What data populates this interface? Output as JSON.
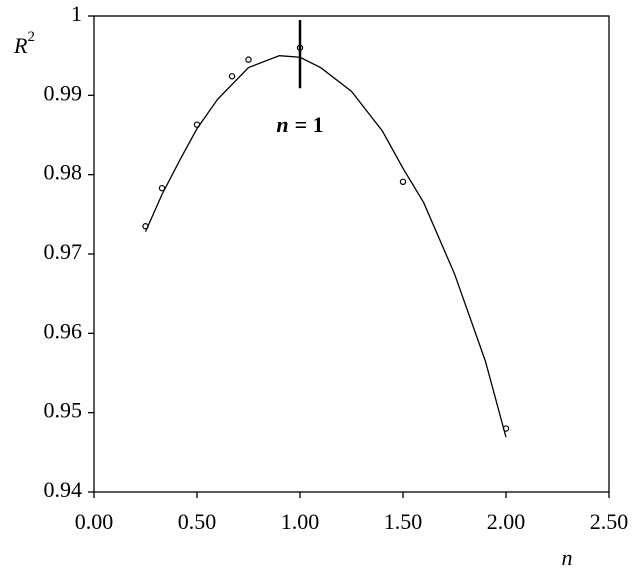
{
  "chart_data": {
    "type": "scatter",
    "x_label": "n",
    "y_label": {
      "text": "R",
      "superscript": "2"
    },
    "xlim": [
      0,
      2.5
    ],
    "ylim": [
      0.94,
      1
    ],
    "xticks": [
      {
        "value": 0,
        "label": "0.00"
      },
      {
        "value": 0.5,
        "label": "0.50"
      },
      {
        "value": 1,
        "label": "1.00"
      },
      {
        "value": 1.5,
        "label": "1.50"
      },
      {
        "value": 2,
        "label": "2.00"
      },
      {
        "value": 2.5,
        "label": "2.50"
      }
    ],
    "yticks": [
      0.94,
      0.95,
      0.96,
      0.97,
      0.98,
      0.99,
      1
    ],
    "series": [
      {
        "mode": "markers",
        "color": "#000000",
        "x": [
          0.25,
          0.33,
          0.5,
          0.67,
          0.75,
          1.0,
          1.5,
          2.0
        ],
        "values": [
          0.9735,
          0.9783,
          0.9863,
          0.9924,
          0.9945,
          0.996,
          0.9791,
          0.948
        ]
      },
      {
        "mode": "line",
        "color": "#000000",
        "x": [
          0.25,
          0.33,
          0.42,
          0.5,
          0.6,
          0.75,
          0.9,
          1.0,
          1.1,
          1.25,
          1.4,
          1.5,
          1.6,
          1.75,
          1.9,
          2.0
        ],
        "values": [
          0.9728,
          0.9775,
          0.982,
          0.9858,
          0.9895,
          0.9935,
          0.995,
          0.9948,
          0.9935,
          0.9905,
          0.9855,
          0.9808,
          0.9765,
          0.9675,
          0.9565,
          0.9469
        ]
      }
    ],
    "annotation": {
      "variable": "n",
      "text": "= 1",
      "x": 1,
      "y": [
        0.9909,
        0.9995
      ]
    }
  }
}
